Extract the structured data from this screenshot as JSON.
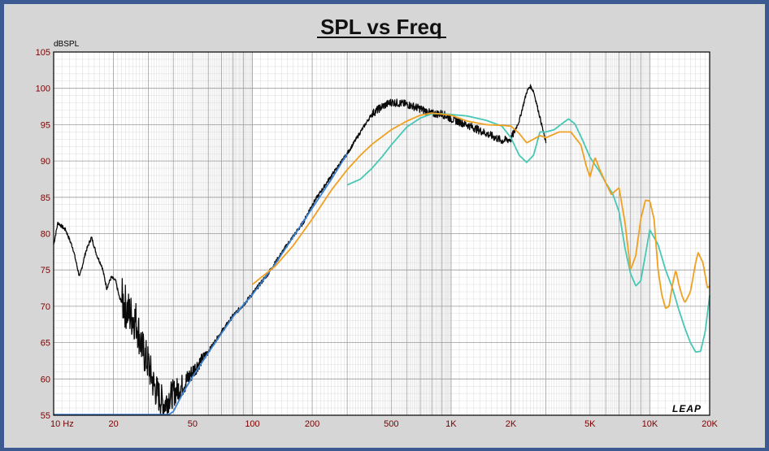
{
  "chart_data": {
    "type": "line",
    "title": "SPL vs Freq",
    "ylabel": "dBSPL",
    "xlabel": "",
    "x_scale": "log",
    "xlim": [
      10,
      20000
    ],
    "ylim": [
      55,
      105
    ],
    "y_ticks": [
      "55",
      "60",
      "65",
      "70",
      "75",
      "80",
      "85",
      "90",
      "95",
      "100",
      "105"
    ],
    "x_ticks": [
      {
        "value": 10,
        "label": "10 Hz"
      },
      {
        "value": 20,
        "label": "20"
      },
      {
        "value": 50,
        "label": "50"
      },
      {
        "value": 100,
        "label": "100"
      },
      {
        "value": 200,
        "label": "200"
      },
      {
        "value": 500,
        "label": "500"
      },
      {
        "value": 1000,
        "label": "1K"
      },
      {
        "value": 2000,
        "label": "2K"
      },
      {
        "value": 5000,
        "label": "5K"
      },
      {
        "value": 10000,
        "label": "10K"
      },
      {
        "value": 20000,
        "label": "20K"
      }
    ],
    "grid": true,
    "legend": "none",
    "series": [
      {
        "color": "#0a0a0a",
        "noisy": true,
        "points": [
          [
            10,
            78.5
          ],
          [
            10.5,
            81.5
          ],
          [
            11.5,
            80.5
          ],
          [
            12.5,
            78
          ],
          [
            13.5,
            74
          ],
          [
            14.5,
            77.5
          ],
          [
            15.5,
            79.5
          ],
          [
            16.5,
            77
          ],
          [
            17.5,
            75.5
          ],
          [
            18.5,
            72.5
          ],
          [
            19.5,
            74
          ],
          [
            20.5,
            73.5
          ],
          [
            21.5,
            71
          ],
          [
            22.5,
            70.5
          ],
          [
            24,
            69
          ],
          [
            26,
            68
          ],
          [
            28,
            64
          ],
          [
            30,
            62
          ],
          [
            32,
            59
          ],
          [
            34,
            57.5
          ],
          [
            36,
            56.5
          ],
          [
            38,
            57.5
          ],
          [
            42,
            58.5
          ],
          [
            46,
            59.5
          ],
          [
            50,
            61
          ],
          [
            55,
            62.5
          ],
          [
            60,
            63.8
          ],
          [
            70,
            66.5
          ],
          [
            80,
            68.7
          ],
          [
            90,
            70.2
          ],
          [
            100,
            71.7
          ],
          [
            120,
            74.5
          ],
          [
            150,
            78.5
          ],
          [
            180,
            81.5
          ],
          [
            200,
            84
          ],
          [
            250,
            88
          ],
          [
            300,
            91
          ],
          [
            350,
            94
          ],
          [
            400,
            96.5
          ],
          [
            450,
            97.5
          ],
          [
            500,
            98.1
          ],
          [
            600,
            97.8
          ],
          [
            700,
            97.2
          ],
          [
            800,
            96.5
          ],
          [
            900,
            96.5
          ],
          [
            1000,
            95.8
          ],
          [
            1200,
            95
          ],
          [
            1500,
            93.8
          ],
          [
            1800,
            92.8
          ],
          [
            2000,
            93
          ],
          [
            2200,
            95.5
          ],
          [
            2400,
            99.5
          ],
          [
            2500,
            100.3
          ],
          [
            2600,
            99.6
          ],
          [
            2800,
            96
          ],
          [
            3000,
            92.5
          ]
        ]
      },
      {
        "color": "#3a7fd0",
        "noisy": false,
        "points": [
          [
            10,
            55.1
          ],
          [
            38,
            55.1
          ],
          [
            40,
            55.5
          ],
          [
            45,
            58.2
          ],
          [
            50,
            60.3
          ],
          [
            60,
            63.6
          ],
          [
            80,
            68.6
          ],
          [
            100,
            71.6
          ],
          [
            130,
            75.8
          ],
          [
            160,
            79.5
          ],
          [
            200,
            83.5
          ],
          [
            250,
            87.5
          ],
          [
            300,
            91
          ]
        ]
      },
      {
        "color": "#46c8b4",
        "noisy": false,
        "points": [
          [
            300,
            86.7
          ],
          [
            350,
            87.5
          ],
          [
            400,
            89
          ],
          [
            450,
            90.6
          ],
          [
            500,
            92.2
          ],
          [
            600,
            94.7
          ],
          [
            700,
            95.9
          ],
          [
            800,
            96.5
          ],
          [
            900,
            96.5
          ],
          [
            1000,
            96.4
          ],
          [
            1200,
            96.2
          ],
          [
            1500,
            95.6
          ],
          [
            1800,
            94.8
          ],
          [
            2000,
            93.2
          ],
          [
            2200,
            90.8
          ],
          [
            2400,
            89.8
          ],
          [
            2600,
            90.8
          ],
          [
            2800,
            94
          ],
          [
            3000,
            94
          ],
          [
            3300,
            94.3
          ],
          [
            3600,
            95.1
          ],
          [
            3900,
            95.8
          ],
          [
            4200,
            95.1
          ],
          [
            4600,
            92.8
          ],
          [
            5000,
            90.5
          ],
          [
            5600,
            88.5
          ],
          [
            6000,
            87
          ],
          [
            6500,
            85.5
          ],
          [
            7000,
            83
          ],
          [
            7500,
            78
          ],
          [
            8000,
            74.5
          ],
          [
            8500,
            72.8
          ],
          [
            9000,
            73.5
          ],
          [
            10000,
            80.5
          ],
          [
            11000,
            78.5
          ],
          [
            12000,
            75
          ],
          [
            13000,
            72.5
          ],
          [
            14000,
            69.5
          ],
          [
            15000,
            67
          ],
          [
            16000,
            65
          ],
          [
            17000,
            63.7
          ],
          [
            18000,
            63.8
          ],
          [
            19000,
            66.5
          ],
          [
            20000,
            71.5
          ]
        ]
      },
      {
        "color": "#f0a020",
        "noisy": false,
        "points": [
          [
            100,
            73
          ],
          [
            130,
            75.5
          ],
          [
            160,
            78.3
          ],
          [
            200,
            82
          ],
          [
            250,
            86
          ],
          [
            300,
            88.8
          ],
          [
            350,
            90.8
          ],
          [
            400,
            92.3
          ],
          [
            500,
            94.3
          ],
          [
            600,
            95.5
          ],
          [
            700,
            96.3
          ],
          [
            800,
            96.6
          ],
          [
            1000,
            96.3
          ],
          [
            1200,
            95.5
          ],
          [
            1500,
            95
          ],
          [
            1800,
            94.9
          ],
          [
            2000,
            94.8
          ],
          [
            2200,
            93.8
          ],
          [
            2400,
            92.5
          ],
          [
            2600,
            93
          ],
          [
            2800,
            93.5
          ],
          [
            3000,
            93.2
          ],
          [
            3500,
            94
          ],
          [
            4000,
            94
          ],
          [
            4500,
            92.2
          ],
          [
            4800,
            89.2
          ],
          [
            5000,
            87.8
          ],
          [
            5300,
            90.5
          ],
          [
            5600,
            88.8
          ],
          [
            6000,
            87
          ],
          [
            6400,
            85.4
          ],
          [
            7000,
            86.3
          ],
          [
            7500,
            81.5
          ],
          [
            8000,
            75
          ],
          [
            8500,
            77
          ],
          [
            9000,
            82
          ],
          [
            9500,
            84.6
          ],
          [
            10000,
            84.5
          ],
          [
            10500,
            82
          ],
          [
            11000,
            75
          ],
          [
            11500,
            71.5
          ],
          [
            12000,
            69.7
          ],
          [
            12500,
            70
          ],
          [
            13000,
            73
          ],
          [
            13500,
            75
          ],
          [
            14000,
            73
          ],
          [
            14500,
            71.5
          ],
          [
            15000,
            70.5
          ],
          [
            15500,
            71.2
          ],
          [
            16000,
            72
          ],
          [
            16500,
            74
          ],
          [
            17000,
            76
          ],
          [
            17500,
            77.4
          ],
          [
            18500,
            76
          ],
          [
            19500,
            72.5
          ],
          [
            20000,
            72.8
          ]
        ]
      }
    ]
  },
  "logo": {
    "text": "LEAP"
  }
}
